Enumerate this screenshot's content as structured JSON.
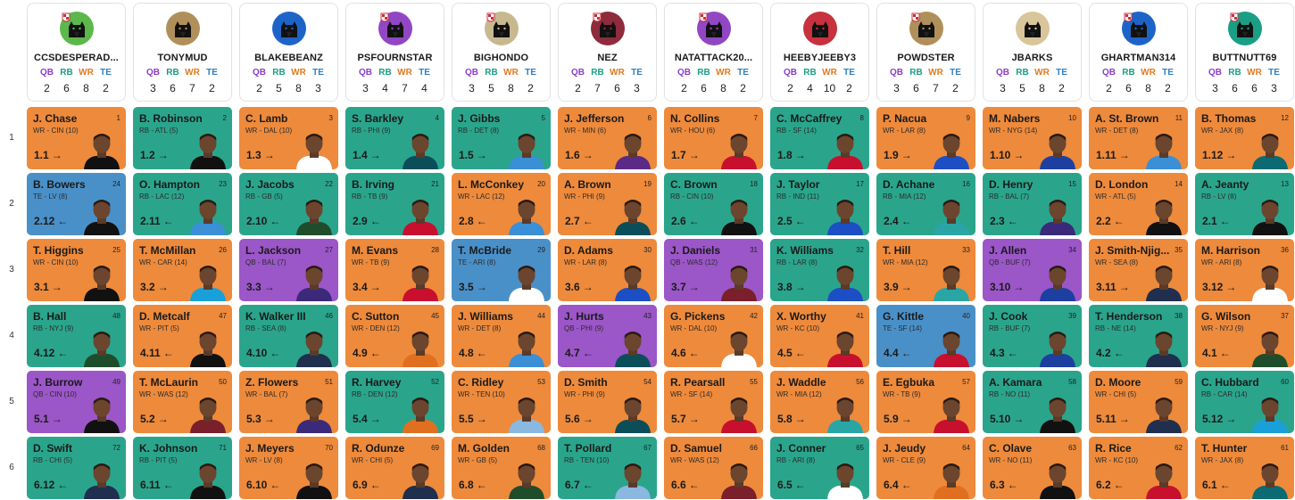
{
  "rounds": [
    "1",
    "2",
    "3",
    "4",
    "5",
    "6"
  ],
  "position_labels": {
    "qb": "QB",
    "rb": "RB",
    "wr": "WR",
    "te": "TE"
  },
  "teams": [
    {
      "name": "CCSDESPERAD...",
      "color": "#5cb84a",
      "badge": true,
      "counts": {
        "qb": "2",
        "rb": "6",
        "wr": "8",
        "te": "2"
      }
    },
    {
      "name": "TONYMUD",
      "color": "#b0905a",
      "badge": false,
      "counts": {
        "qb": "3",
        "rb": "6",
        "wr": "7",
        "te": "2"
      }
    },
    {
      "name": "BLAKEBEANZ",
      "color": "#1e64c8",
      "badge": false,
      "counts": {
        "qb": "2",
        "rb": "5",
        "wr": "8",
        "te": "3"
      }
    },
    {
      "name": "PSFOURNSTAR",
      "color": "#9147c4",
      "badge": true,
      "counts": {
        "qb": "3",
        "rb": "4",
        "wr": "7",
        "te": "4"
      }
    },
    {
      "name": "BIGHONDO",
      "color": "#c8b890",
      "badge": true,
      "counts": {
        "qb": "3",
        "rb": "5",
        "wr": "8",
        "te": "2"
      }
    },
    {
      "name": "NEZ",
      "color": "#8e2b3c",
      "badge": true,
      "counts": {
        "qb": "2",
        "rb": "7",
        "wr": "6",
        "te": "3"
      }
    },
    {
      "name": "NATATTACK20...",
      "color": "#9147c4",
      "badge": true,
      "counts": {
        "qb": "2",
        "rb": "6",
        "wr": "8",
        "te": "2"
      }
    },
    {
      "name": "HEEBYJEEBY3",
      "color": "#c8313e",
      "badge": false,
      "counts": {
        "qb": "2",
        "rb": "4",
        "wr": "10",
        "te": "2"
      }
    },
    {
      "name": "POWDSTER",
      "color": "#b0905a",
      "badge": true,
      "counts": {
        "qb": "3",
        "rb": "6",
        "wr": "7",
        "te": "2"
      }
    },
    {
      "name": "JBARKS",
      "color": "#d9c59a",
      "badge": false,
      "counts": {
        "qb": "3",
        "rb": "5",
        "wr": "8",
        "te": "2"
      }
    },
    {
      "name": "GHARTMAN314",
      "color": "#1e64c8",
      "badge": true,
      "counts": {
        "qb": "2",
        "rb": "6",
        "wr": "8",
        "te": "2"
      }
    },
    {
      "name": "BUTTNUTT69",
      "color": "#1a9e84",
      "badge": true,
      "counts": {
        "qb": "3",
        "rb": "6",
        "wr": "6",
        "te": "3"
      }
    }
  ],
  "picks": [
    [
      {
        "name": "J. Chase",
        "info": "WR - CIN (10)",
        "pick": "1",
        "slot": "1.1",
        "arrow": "→",
        "pos": "WR",
        "jersey": "#111111"
      },
      {
        "name": "B. Robinson",
        "info": "RB - ATL (5)",
        "pick": "2",
        "slot": "1.2",
        "arrow": "→",
        "pos": "RB",
        "jersey": "#111111"
      },
      {
        "name": "C. Lamb",
        "info": "WR - DAL (10)",
        "pick": "3",
        "slot": "1.3",
        "arrow": "→",
        "pos": "WR",
        "jersey": "#ffffff"
      },
      {
        "name": "S. Barkley",
        "info": "RB - PHI (9)",
        "pick": "4",
        "slot": "1.4",
        "arrow": "→",
        "pos": "RB",
        "jersey": "#0b4e5a"
      },
      {
        "name": "J. Gibbs",
        "info": "RB - DET (8)",
        "pick": "5",
        "slot": "1.5",
        "arrow": "→",
        "pos": "RB",
        "jersey": "#3a8fd6"
      },
      {
        "name": "J. Jefferson",
        "info": "WR - MIN (6)",
        "pick": "6",
        "slot": "1.6",
        "arrow": "→",
        "pos": "WR",
        "jersey": "#5b2a86"
      },
      {
        "name": "N. Collins",
        "info": "WR - HOU (6)",
        "pick": "7",
        "slot": "1.7",
        "arrow": "→",
        "pos": "WR",
        "jersey": "#c8102e"
      },
      {
        "name": "C. McCaffrey",
        "info": "RB - SF (14)",
        "pick": "8",
        "slot": "1.8",
        "arrow": "→",
        "pos": "RB",
        "jersey": "#c8102e"
      },
      {
        "name": "P. Nacua",
        "info": "WR - LAR (8)",
        "pick": "9",
        "slot": "1.9",
        "arrow": "→",
        "pos": "WR",
        "jersey": "#1d4fc4"
      },
      {
        "name": "M. Nabers",
        "info": "WR - NYG (14)",
        "pick": "10",
        "slot": "1.10",
        "arrow": "→",
        "pos": "WR",
        "jersey": "#1d3fa0"
      },
      {
        "name": "A. St. Brown",
        "info": "WR - DET (8)",
        "pick": "11",
        "slot": "1.11",
        "arrow": "→",
        "pos": "WR",
        "jersey": "#3a8fd6"
      },
      {
        "name": "B. Thomas",
        "info": "WR - JAX (8)",
        "pick": "12",
        "slot": "1.12",
        "arrow": "→",
        "pos": "WR",
        "jersey": "#0b6a72"
      }
    ],
    [
      {
        "name": "B. Bowers",
        "info": "TE - LV (8)",
        "pick": "24",
        "slot": "2.12",
        "arrow": "←",
        "pos": "TE",
        "jersey": "#111111"
      },
      {
        "name": "O. Hampton",
        "info": "RB - LAC (12)",
        "pick": "23",
        "slot": "2.11",
        "arrow": "←",
        "pos": "RB",
        "jersey": "#3a8fd6"
      },
      {
        "name": "J. Jacobs",
        "info": "RB - GB (5)",
        "pick": "22",
        "slot": "2.10",
        "arrow": "←",
        "pos": "RB",
        "jersey": "#1f4d2b"
      },
      {
        "name": "B. Irving",
        "info": "RB - TB (9)",
        "pick": "21",
        "slot": "2.9",
        "arrow": "←",
        "pos": "RB",
        "jersey": "#c8102e"
      },
      {
        "name": "L. McConkey",
        "info": "WR - LAC (12)",
        "pick": "20",
        "slot": "2.8",
        "arrow": "←",
        "pos": "WR",
        "jersey": "#3a8fd6"
      },
      {
        "name": "A. Brown",
        "info": "WR - PHI (9)",
        "pick": "19",
        "slot": "2.7",
        "arrow": "←",
        "pos": "WR",
        "jersey": "#0b4e5a"
      },
      {
        "name": "C. Brown",
        "info": "RB - CIN (10)",
        "pick": "18",
        "slot": "2.6",
        "arrow": "←",
        "pos": "RB",
        "jersey": "#111111"
      },
      {
        "name": "J. Taylor",
        "info": "RB - IND (11)",
        "pick": "17",
        "slot": "2.5",
        "arrow": "←",
        "pos": "RB",
        "jersey": "#1d4fc4"
      },
      {
        "name": "D. Achane",
        "info": "RB - MIA (12)",
        "pick": "16",
        "slot": "2.4",
        "arrow": "←",
        "pos": "RB",
        "jersey": "#2aa5a5"
      },
      {
        "name": "D. Henry",
        "info": "RB - BAL (7)",
        "pick": "15",
        "slot": "2.3",
        "arrow": "←",
        "pos": "RB",
        "jersey": "#3b2a7a"
      },
      {
        "name": "D. London",
        "info": "WR - ATL (5)",
        "pick": "14",
        "slot": "2.2",
        "arrow": "←",
        "pos": "WR",
        "jersey": "#111111"
      },
      {
        "name": "A. Jeanty",
        "info": "RB - LV (8)",
        "pick": "13",
        "slot": "2.1",
        "arrow": "←",
        "pos": "RB",
        "jersey": "#111111"
      }
    ],
    [
      {
        "name": "T. Higgins",
        "info": "WR - CIN (10)",
        "pick": "25",
        "slot": "3.1",
        "arrow": "→",
        "pos": "WR",
        "jersey": "#111111"
      },
      {
        "name": "T. McMillan",
        "info": "WR - CAR (14)",
        "pick": "26",
        "slot": "3.2",
        "arrow": "→",
        "pos": "WR",
        "jersey": "#1aa0d8"
      },
      {
        "name": "L. Jackson",
        "info": "QB - BAL (7)",
        "pick": "27",
        "slot": "3.3",
        "arrow": "→",
        "pos": "QB",
        "jersey": "#3b2a7a"
      },
      {
        "name": "M. Evans",
        "info": "WR - TB (9)",
        "pick": "28",
        "slot": "3.4",
        "arrow": "→",
        "pos": "WR",
        "jersey": "#c8102e"
      },
      {
        "name": "T. McBride",
        "info": "TE - ARI (8)",
        "pick": "29",
        "slot": "3.5",
        "arrow": "→",
        "pos": "TE",
        "jersey": "#ffffff"
      },
      {
        "name": "D. Adams",
        "info": "WR - LAR (8)",
        "pick": "30",
        "slot": "3.6",
        "arrow": "→",
        "pos": "WR",
        "jersey": "#1d4fc4"
      },
      {
        "name": "J. Daniels",
        "info": "QB - WAS (12)",
        "pick": "31",
        "slot": "3.7",
        "arrow": "→",
        "pos": "QB",
        "jersey": "#7a1f2b"
      },
      {
        "name": "K. Williams",
        "info": "RB - LAR (8)",
        "pick": "32",
        "slot": "3.8",
        "arrow": "→",
        "pos": "RB",
        "jersey": "#1d4fc4"
      },
      {
        "name": "T. Hill",
        "info": "WR - MIA (12)",
        "pick": "33",
        "slot": "3.9",
        "arrow": "→",
        "pos": "WR",
        "jersey": "#2aa5a5"
      },
      {
        "name": "J. Allen",
        "info": "QB - BUF (7)",
        "pick": "34",
        "slot": "3.10",
        "arrow": "→",
        "pos": "QB",
        "jersey": "#1d3fa0"
      },
      {
        "name": "J. Smith-Njig...",
        "info": "WR - SEA (8)",
        "pick": "35",
        "slot": "3.11",
        "arrow": "→",
        "pos": "WR",
        "jersey": "#1f2f4d"
      },
      {
        "name": "M. Harrison",
        "info": "WR - ARI (8)",
        "pick": "36",
        "slot": "3.12",
        "arrow": "→",
        "pos": "WR",
        "jersey": "#ffffff"
      }
    ],
    [
      {
        "name": "B. Hall",
        "info": "RB - NYJ (9)",
        "pick": "48",
        "slot": "4.12",
        "arrow": "←",
        "pos": "RB",
        "jersey": "#1f4d2b"
      },
      {
        "name": "D. Metcalf",
        "info": "WR - PIT (5)",
        "pick": "47",
        "slot": "4.11",
        "arrow": "←",
        "pos": "WR",
        "jersey": "#111111"
      },
      {
        "name": "K. Walker III",
        "info": "RB - SEA (8)",
        "pick": "46",
        "slot": "4.10",
        "arrow": "←",
        "pos": "RB",
        "jersey": "#1f2f4d"
      },
      {
        "name": "C. Sutton",
        "info": "WR - DEN (12)",
        "pick": "45",
        "slot": "4.9",
        "arrow": "←",
        "pos": "WR",
        "jersey": "#e0701f"
      },
      {
        "name": "J. Williams",
        "info": "WR - DET (8)",
        "pick": "44",
        "slot": "4.8",
        "arrow": "←",
        "pos": "WR",
        "jersey": "#3a8fd6"
      },
      {
        "name": "J. Hurts",
        "info": "QB - PHI (9)",
        "pick": "43",
        "slot": "4.7",
        "arrow": "←",
        "pos": "QB",
        "jersey": "#0b4e5a"
      },
      {
        "name": "G. Pickens",
        "info": "WR - DAL (10)",
        "pick": "42",
        "slot": "4.6",
        "arrow": "←",
        "pos": "WR",
        "jersey": "#ffffff"
      },
      {
        "name": "X. Worthy",
        "info": "WR - KC (10)",
        "pick": "41",
        "slot": "4.5",
        "arrow": "←",
        "pos": "WR",
        "jersey": "#c8102e"
      },
      {
        "name": "G. Kittle",
        "info": "TE - SF (14)",
        "pick": "40",
        "slot": "4.4",
        "arrow": "←",
        "pos": "TE",
        "jersey": "#c8102e"
      },
      {
        "name": "J. Cook",
        "info": "RB - BUF (7)",
        "pick": "39",
        "slot": "4.3",
        "arrow": "←",
        "pos": "RB",
        "jersey": "#1d3fa0"
      },
      {
        "name": "T. Henderson",
        "info": "RB - NE (14)",
        "pick": "38",
        "slot": "4.2",
        "arrow": "←",
        "pos": "RB",
        "jersey": "#1f2f4d"
      },
      {
        "name": "G. Wilson",
        "info": "WR - NYJ (9)",
        "pick": "37",
        "slot": "4.1",
        "arrow": "←",
        "pos": "WR",
        "jersey": "#1f4d2b"
      }
    ],
    [
      {
        "name": "J. Burrow",
        "info": "QB - CIN (10)",
        "pick": "49",
        "slot": "5.1",
        "arrow": "→",
        "pos": "QB",
        "jersey": "#111111"
      },
      {
        "name": "T. McLaurin",
        "info": "WR - WAS (12)",
        "pick": "50",
        "slot": "5.2",
        "arrow": "→",
        "pos": "WR",
        "jersey": "#7a1f2b"
      },
      {
        "name": "Z. Flowers",
        "info": "WR - BAL (7)",
        "pick": "51",
        "slot": "5.3",
        "arrow": "→",
        "pos": "WR",
        "jersey": "#3b2a7a"
      },
      {
        "name": "R. Harvey",
        "info": "RB - DEN (12)",
        "pick": "52",
        "slot": "5.4",
        "arrow": "→",
        "pos": "RB",
        "jersey": "#e0701f"
      },
      {
        "name": "C. Ridley",
        "info": "WR - TEN (10)",
        "pick": "53",
        "slot": "5.5",
        "arrow": "→",
        "pos": "WR",
        "jersey": "#8ab8e0"
      },
      {
        "name": "D. Smith",
        "info": "WR - PHI (9)",
        "pick": "54",
        "slot": "5.6",
        "arrow": "→",
        "pos": "WR",
        "jersey": "#0b4e5a"
      },
      {
        "name": "R. Pearsall",
        "info": "WR - SF (14)",
        "pick": "55",
        "slot": "5.7",
        "arrow": "→",
        "pos": "WR",
        "jersey": "#c8102e"
      },
      {
        "name": "J. Waddle",
        "info": "WR - MIA (12)",
        "pick": "56",
        "slot": "5.8",
        "arrow": "→",
        "pos": "WR",
        "jersey": "#2aa5a5"
      },
      {
        "name": "E. Egbuka",
        "info": "WR - TB (9)",
        "pick": "57",
        "slot": "5.9",
        "arrow": "→",
        "pos": "WR",
        "jersey": "#c8102e"
      },
      {
        "name": "A. Kamara",
        "info": "RB - NO (11)",
        "pick": "58",
        "slot": "5.10",
        "arrow": "→",
        "pos": "RB",
        "jersey": "#111111"
      },
      {
        "name": "D. Moore",
        "info": "WR - CHI (5)",
        "pick": "59",
        "slot": "5.11",
        "arrow": "→",
        "pos": "WR",
        "jersey": "#1f2f4d"
      },
      {
        "name": "C. Hubbard",
        "info": "RB - CAR (14)",
        "pick": "60",
        "slot": "5.12",
        "arrow": "→",
        "pos": "RB",
        "jersey": "#1aa0d8"
      }
    ],
    [
      {
        "name": "D. Swift",
        "info": "RB - CHI (5)",
        "pick": "72",
        "slot": "6.12",
        "arrow": "←",
        "pos": "RB",
        "jersey": "#1f2f4d"
      },
      {
        "name": "K. Johnson",
        "info": "RB - PIT (5)",
        "pick": "71",
        "slot": "6.11",
        "arrow": "←",
        "pos": "RB",
        "jersey": "#111111"
      },
      {
        "name": "J. Meyers",
        "info": "WR - LV (8)",
        "pick": "70",
        "slot": "6.10",
        "arrow": "←",
        "pos": "WR",
        "jersey": "#111111"
      },
      {
        "name": "R. Odunze",
        "info": "WR - CHI (5)",
        "pick": "69",
        "slot": "6.9",
        "arrow": "←",
        "pos": "WR",
        "jersey": "#1f2f4d"
      },
      {
        "name": "M. Golden",
        "info": "WR - GB (5)",
        "pick": "68",
        "slot": "6.8",
        "arrow": "←",
        "pos": "WR",
        "jersey": "#1f4d2b"
      },
      {
        "name": "T. Pollard",
        "info": "RB - TEN (10)",
        "pick": "67",
        "slot": "6.7",
        "arrow": "←",
        "pos": "RB",
        "jersey": "#8ab8e0"
      },
      {
        "name": "D. Samuel",
        "info": "WR - WAS (12)",
        "pick": "66",
        "slot": "6.6",
        "arrow": "←",
        "pos": "WR",
        "jersey": "#7a1f2b"
      },
      {
        "name": "J. Conner",
        "info": "RB - ARI (8)",
        "pick": "65",
        "slot": "6.5",
        "arrow": "←",
        "pos": "RB",
        "jersey": "#ffffff"
      },
      {
        "name": "J. Jeudy",
        "info": "WR - CLE (9)",
        "pick": "64",
        "slot": "6.4",
        "arrow": "←",
        "pos": "WR",
        "jersey": "#e0701f"
      },
      {
        "name": "C. Olave",
        "info": "WR - NO (11)",
        "pick": "63",
        "slot": "6.3",
        "arrow": "←",
        "pos": "WR",
        "jersey": "#111111"
      },
      {
        "name": "R. Rice",
        "info": "WR - KC (10)",
        "pick": "62",
        "slot": "6.2",
        "arrow": "←",
        "pos": "WR",
        "jersey": "#c8102e"
      },
      {
        "name": "T. Hunter",
        "info": "WR - JAX (8)",
        "pick": "61",
        "slot": "6.1",
        "arrow": "←",
        "pos": "WR",
        "jersey": "#0b6a72"
      }
    ]
  ]
}
